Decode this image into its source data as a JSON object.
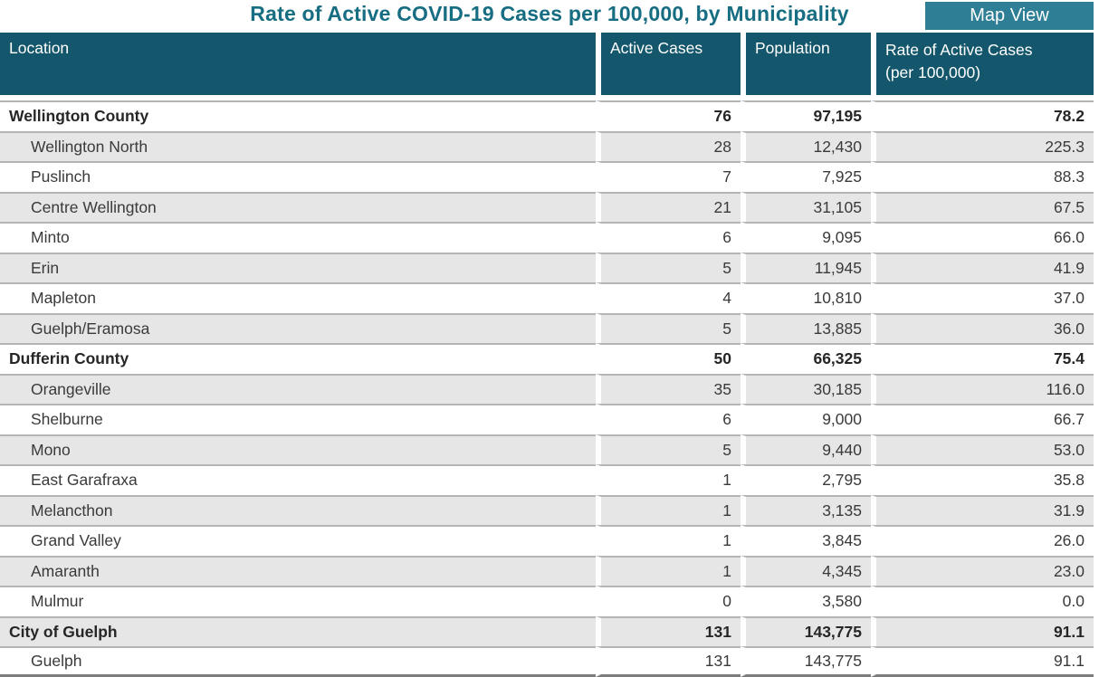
{
  "title": "Rate of Active COVID-19 Cases per 100,000, by Municipality",
  "toolbar": {
    "map_view_label": "Map View"
  },
  "colors": {
    "title_text": "#176D82",
    "table_header_bg": "#14566B",
    "button_bg": "#2E7E95",
    "alt_row_bg": "#E6E6E6",
    "row_separator": "#B5B5B5",
    "body_text": "#3A3A3A"
  },
  "table": {
    "columns": [
      {
        "label": "Location"
      },
      {
        "label": "Active Cases"
      },
      {
        "label": "Population"
      },
      {
        "label": "Rate of Active Cases",
        "label2": "(per 100,000)"
      }
    ],
    "rows": [
      {
        "location": "Wellington County",
        "active_cases": "76",
        "population": "97,195",
        "rate": "78.2",
        "group": true
      },
      {
        "location": "Wellington North",
        "active_cases": "28",
        "population": "12,430",
        "rate": "225.3",
        "group": false
      },
      {
        "location": "Puslinch",
        "active_cases": "7",
        "population": "7,925",
        "rate": "88.3",
        "group": false
      },
      {
        "location": "Centre Wellington",
        "active_cases": "21",
        "population": "31,105",
        "rate": "67.5",
        "group": false
      },
      {
        "location": "Minto",
        "active_cases": "6",
        "population": "9,095",
        "rate": "66.0",
        "group": false
      },
      {
        "location": "Erin",
        "active_cases": "5",
        "population": "11,945",
        "rate": "41.9",
        "group": false
      },
      {
        "location": "Mapleton",
        "active_cases": "4",
        "population": "10,810",
        "rate": "37.0",
        "group": false
      },
      {
        "location": "Guelph/Eramosa",
        "active_cases": "5",
        "population": "13,885",
        "rate": "36.0",
        "group": false
      },
      {
        "location": "Dufferin County",
        "active_cases": "50",
        "population": "66,325",
        "rate": "75.4",
        "group": true
      },
      {
        "location": "Orangeville",
        "active_cases": "35",
        "population": "30,185",
        "rate": "116.0",
        "group": false
      },
      {
        "location": "Shelburne",
        "active_cases": "6",
        "population": "9,000",
        "rate": "66.7",
        "group": false
      },
      {
        "location": "Mono",
        "active_cases": "5",
        "population": "9,440",
        "rate": "53.0",
        "group": false
      },
      {
        "location": "East Garafraxa",
        "active_cases": "1",
        "population": "2,795",
        "rate": "35.8",
        "group": false
      },
      {
        "location": "Melancthon",
        "active_cases": "1",
        "population": "3,135",
        "rate": "31.9",
        "group": false
      },
      {
        "location": "Grand Valley",
        "active_cases": "1",
        "population": "3,845",
        "rate": "26.0",
        "group": false
      },
      {
        "location": "Amaranth",
        "active_cases": "1",
        "population": "4,345",
        "rate": "23.0",
        "group": false
      },
      {
        "location": "Mulmur",
        "active_cases": "0",
        "population": "3,580",
        "rate": "0.0",
        "group": false
      },
      {
        "location": "City of Guelph",
        "active_cases": "131",
        "population": "143,775",
        "rate": "91.1",
        "group": true
      },
      {
        "location": "Guelph",
        "active_cases": "131",
        "population": "143,775",
        "rate": "91.1",
        "group": false
      }
    ]
  }
}
